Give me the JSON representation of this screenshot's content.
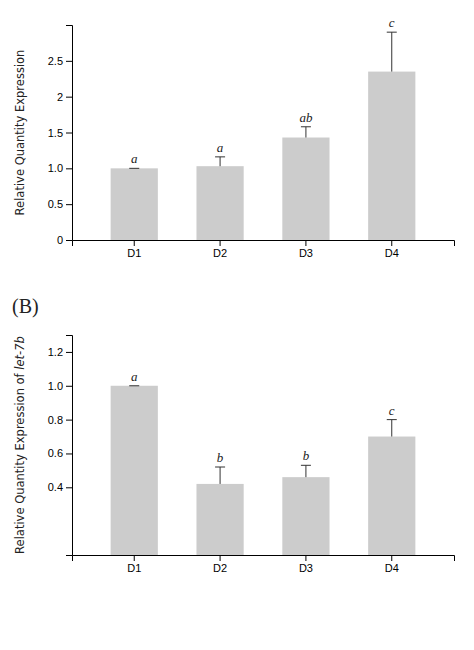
{
  "chart_data": [
    {
      "type": "bar",
      "categories": [
        "D1",
        "D2",
        "D3",
        "D4"
      ],
      "values": [
        1.0,
        1.03,
        1.43,
        2.35
      ],
      "errors": [
        0.0,
        0.13,
        0.15,
        0.55
      ],
      "annotations": [
        "a",
        "a",
        "ab",
        "c"
      ],
      "ylabel": "Relative Quantity Expression",
      "ylim": [
        0,
        3.0
      ],
      "yticks": [
        0,
        0.5,
        {
          "value": 1.0,
          "label": "1.0"
        },
        1.5,
        2.0,
        2.5
      ],
      "color": "#cccccc"
    },
    {
      "type": "bar",
      "title": "(B)",
      "categories": [
        "D1",
        "D2",
        "D3",
        "D4"
      ],
      "values": [
        1.0,
        0.42,
        0.46,
        0.7
      ],
      "errors": [
        0.0,
        0.1,
        0.07,
        0.1
      ],
      "annotations": [
        "a",
        "b",
        "b",
        "c"
      ],
      "ylabel": "Relative Quantity Expression of let-7b",
      "ylim": [
        0,
        1.3
      ],
      "yticks": [
        0.4,
        0.6,
        0.8,
        {
          "value": 1.0,
          "label": "1.0"
        },
        1.2
      ],
      "color": "#cccccc"
    }
  ]
}
